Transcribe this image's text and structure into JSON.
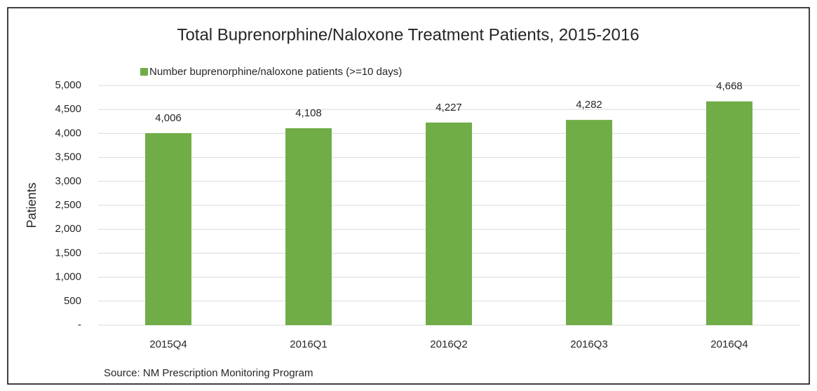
{
  "chart_data": {
    "type": "bar",
    "title": "Total Buprenorphine/Naloxone Treatment Patients, 2015-2016",
    "y_label": "Patients",
    "source": "Source:  NM Prescription Monitoring Program",
    "categories": [
      "2015Q4",
      "2016Q1",
      "2016Q2",
      "2016Q3",
      "2016Q4"
    ],
    "series": [
      {
        "name": "Number buprenorphine/naloxone patients (>=10 days)",
        "color": "#70ad47",
        "values": [
          4006,
          4108,
          4227,
          4282,
          4668
        ],
        "value_labels": [
          "4,006",
          "4,108",
          "4,227",
          "4,282",
          "4,668"
        ]
      }
    ],
    "ylim": [
      0,
      5000
    ],
    "yticks": [
      {
        "value": 0,
        "label": "-"
      },
      500,
      {
        "value": 1000,
        "label": "1,000"
      },
      {
        "value": 1500,
        "label": "1,500"
      },
      {
        "value": 2000,
        "label": "2,000"
      },
      {
        "value": 2500,
        "label": "2,500"
      },
      {
        "value": 3000,
        "label": "3,000"
      },
      {
        "value": 3500,
        "label": "3,500"
      },
      {
        "value": 4000,
        "label": "4,000"
      },
      {
        "value": 4500,
        "label": "4,500"
      },
      {
        "value": 5000,
        "label": "5,000"
      }
    ],
    "grid": true,
    "legend": "top"
  }
}
